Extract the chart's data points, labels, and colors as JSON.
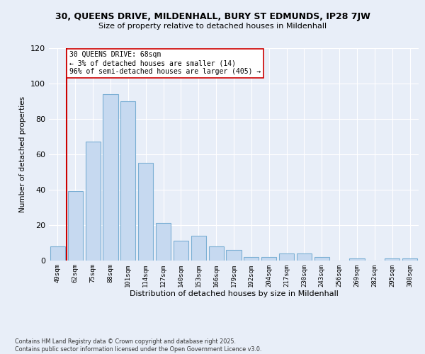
{
  "title": "30, QUEENS DRIVE, MILDENHALL, BURY ST EDMUNDS, IP28 7JW",
  "subtitle": "Size of property relative to detached houses in Mildenhall",
  "xlabel": "Distribution of detached houses by size in Mildenhall",
  "ylabel": "Number of detached properties",
  "categories": [
    "49sqm",
    "62sqm",
    "75sqm",
    "88sqm",
    "101sqm",
    "114sqm",
    "127sqm",
    "140sqm",
    "153sqm",
    "166sqm",
    "179sqm",
    "192sqm",
    "204sqm",
    "217sqm",
    "230sqm",
    "243sqm",
    "256sqm",
    "269sqm",
    "282sqm",
    "295sqm",
    "308sqm"
  ],
  "values": [
    8,
    39,
    67,
    94,
    90,
    55,
    21,
    11,
    14,
    8,
    6,
    2,
    2,
    4,
    4,
    2,
    0,
    1,
    0,
    1,
    1
  ],
  "bar_color": "#c6d9f0",
  "bar_edge_color": "#7bafd4",
  "vline_x": 0.5,
  "vline_color": "#cc0000",
  "annotation_text": "30 QUEENS DRIVE: 68sqm\n← 3% of detached houses are smaller (14)\n96% of semi-detached houses are larger (405) →",
  "annotation_box_color": "#ffffff",
  "annotation_box_edge": "#cc0000",
  "ylim": [
    0,
    120
  ],
  "yticks": [
    0,
    20,
    40,
    60,
    80,
    100,
    120
  ],
  "footer_line1": "Contains HM Land Registry data © Crown copyright and database right 2025.",
  "footer_line2": "Contains public sector information licensed under the Open Government Licence v3.0.",
  "bg_color": "#e8eef8",
  "plot_bg_color": "#e8eef8"
}
